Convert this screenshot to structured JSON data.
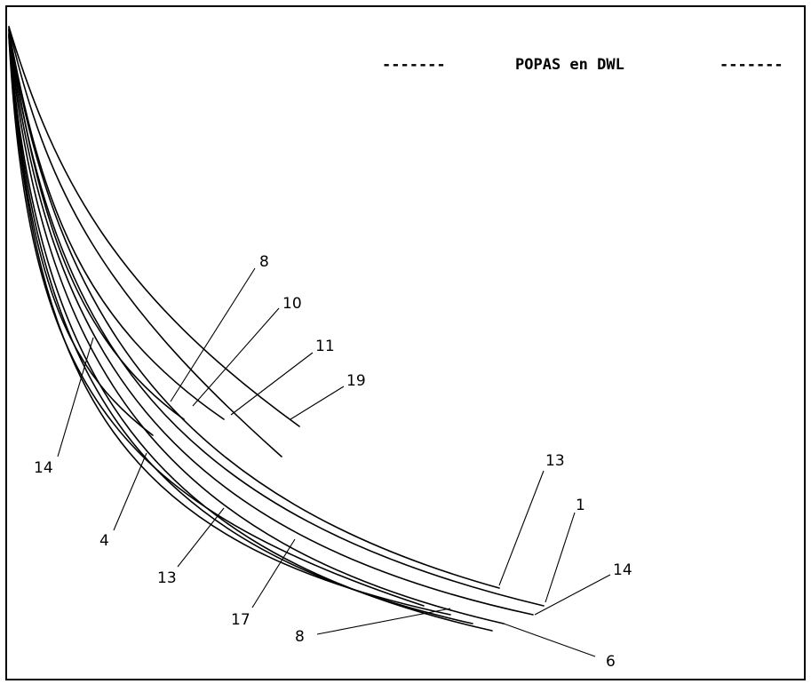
{
  "title": "POPAS en DWL",
  "title_dashes_left": "-------",
  "title_dashes_right": "-------",
  "labels": {
    "l8_top": "8",
    "l10": "10",
    "l11": "11",
    "l19": "19",
    "l14_left": "14",
    "l4": "4",
    "l13_bottom": "13",
    "l17": "17",
    "l8_bottom": "8",
    "l13_right": "13",
    "l1": "1",
    "l14_right": "14",
    "l6": "6"
  },
  "colors": {
    "ink": "#000000",
    "background": "#ffffff"
  }
}
